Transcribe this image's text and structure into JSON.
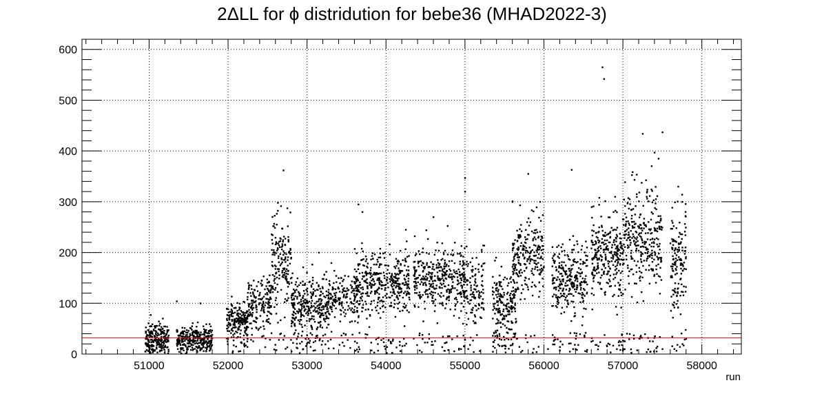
{
  "chart_data": {
    "type": "scatter",
    "title": "2ΔLL for ϕ distridution for bebe36 (MHAD2022-3)",
    "xlabel": "run",
    "ylabel": "",
    "xlim": [
      50150,
      58500
    ],
    "ylim": [
      0,
      620
    ],
    "x_ticks": [
      51000,
      52000,
      53000,
      54000,
      55000,
      56000,
      57000,
      58000
    ],
    "x_tick_labels": [
      "51000",
      "52000",
      "53000",
      "54000",
      "55000",
      "56000",
      "57000",
      "58000"
    ],
    "y_ticks": [
      0,
      100,
      200,
      300,
      400,
      500,
      600
    ],
    "y_tick_labels": [
      "0",
      "100",
      "200",
      "300",
      "400",
      "500",
      "600"
    ],
    "grid": true,
    "reference_line": {
      "y": 32,
      "color": "#ff0000"
    },
    "marker_color": "#000000",
    "density_clusters": [
      {
        "x": [
          50950,
          51250
        ],
        "y_mean": 30,
        "y_sd": 17,
        "count": 230
      },
      {
        "x": [
          51350,
          51800
        ],
        "y_mean": 28,
        "y_sd": 13,
        "count": 300
      },
      {
        "x": [
          51980,
          52250
        ],
        "y_mean": 65,
        "y_sd": 20,
        "count": 200
      },
      {
        "x": [
          52250,
          52550
        ],
        "y_mean": 100,
        "y_sd": 26,
        "count": 170
      },
      {
        "x": [
          52550,
          52800
        ],
        "y_mean": 180,
        "y_sd": 45,
        "count": 170
      },
      {
        "x": [
          52800,
          53300
        ],
        "y_mean": 95,
        "y_sd": 28,
        "count": 350
      },
      {
        "x": [
          53300,
          53650
        ],
        "y_mean": 108,
        "y_sd": 25,
        "count": 160
      },
      {
        "x": [
          53600,
          54300
        ],
        "y_mean": 140,
        "y_sd": 32,
        "count": 430
      },
      {
        "x": [
          54350,
          55000
        ],
        "y_mean": 145,
        "y_sd": 30,
        "count": 380
      },
      {
        "x": [
          54950,
          55250
        ],
        "y_mean": 130,
        "y_sd": 35,
        "count": 150
      },
      {
        "x": [
          55350,
          55650
        ],
        "y_mean": 100,
        "y_sd": 35,
        "count": 210
      },
      {
        "x": [
          55600,
          56000
        ],
        "y_mean": 195,
        "y_sd": 38,
        "count": 250
      },
      {
        "x": [
          56100,
          56550
        ],
        "y_mean": 150,
        "y_sd": 32,
        "count": 300
      },
      {
        "x": [
          56600,
          57000
        ],
        "y_mean": 190,
        "y_sd": 40,
        "count": 300
      },
      {
        "x": [
          57000,
          57500
        ],
        "y_mean": 230,
        "y_sd": 50,
        "count": 330
      },
      {
        "x": [
          57600,
          57800
        ],
        "y_mean": 180,
        "y_sd": 50,
        "count": 150
      }
    ],
    "sparse_points": {
      "x": [
        50950,
        51000,
        51350,
        51650,
        52050,
        52100,
        52700,
        52950,
        53150,
        53650,
        53700,
        54250,
        54600,
        54950,
        55000,
        55000,
        55600,
        55800,
        55950,
        56050,
        56350,
        56400,
        56700,
        56740,
        56760,
        56900,
        57000,
        57250,
        57300,
        57400,
        57450,
        57500,
        57500,
        57650,
        57700,
        57750,
        57800
      ],
      "y": [
        5,
        8,
        104,
        100,
        95,
        15,
        362,
        10,
        200,
        295,
        280,
        245,
        270,
        10,
        347,
        320,
        300,
        355,
        300,
        10,
        363,
        10,
        308,
        565,
        542,
        310,
        10,
        434,
        310,
        397,
        385,
        437,
        10,
        10,
        330,
        300,
        30
      ]
    }
  }
}
